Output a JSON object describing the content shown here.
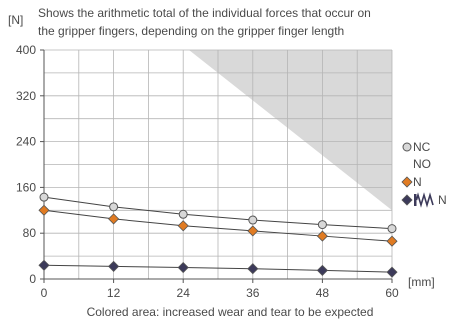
{
  "chart_data": {
    "type": "line",
    "title": "Shows the arithmetic total of the individual forces that occur on the gripper fingers, depending on the gripper finger length",
    "ylabel": "[N]",
    "xlabel": "[mm]",
    "footnote": "Colored area: increased wear and tear to be expected",
    "xlim": [
      0,
      60
    ],
    "ylim": [
      0,
      400
    ],
    "x_ticks": [
      "0",
      "12",
      "24",
      "36",
      "48",
      "60"
    ],
    "y_ticks": [
      "0",
      "80",
      "160",
      "240",
      "320",
      "400"
    ],
    "grid": "on",
    "legend_position": "right",
    "shaded_region": {
      "label": "Colored area",
      "color": "#d9d9d9",
      "boundary": [
        [
          25,
          400
        ],
        [
          60,
          120
        ]
      ]
    },
    "series": [
      {
        "name": "NC",
        "name_line2": "NO",
        "marker": "circle",
        "color": "#d8d8d8",
        "x": [
          0,
          12,
          24,
          36,
          48,
          60
        ],
        "y": [
          143,
          126,
          113,
          103,
          95,
          88
        ]
      },
      {
        "name": "N",
        "marker": "diamond",
        "color": "#e07b22",
        "x": [
          0,
          12,
          24,
          36,
          48,
          60
        ],
        "y": [
          120,
          105,
          93,
          84,
          75,
          66
        ]
      },
      {
        "name": "N",
        "marker": "diamond",
        "color": "#3c3a5a",
        "spring_symbol": true,
        "x": [
          0,
          12,
          24,
          36,
          48,
          60
        ],
        "y": [
          24,
          22,
          20,
          18,
          15,
          12
        ]
      }
    ]
  }
}
